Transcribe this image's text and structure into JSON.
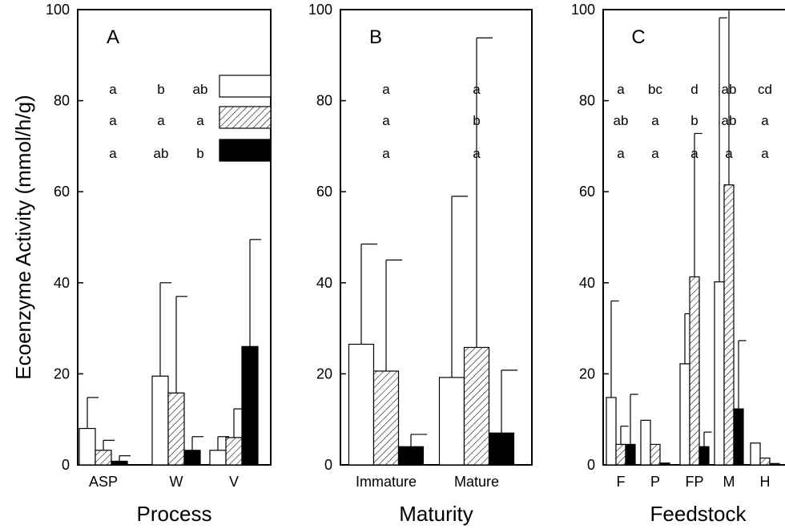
{
  "ylabel": "Ecoenzyme Activity (mmol/h/g)",
  "legend": [
    {
      "pattern": "open",
      "letters_A": [
        "a",
        "b",
        "ab"
      ]
    },
    {
      "pattern": "hatched",
      "letters_A": [
        "a",
        "a",
        "a"
      ]
    },
    {
      "pattern": "solid",
      "letters_A": [
        "a",
        "ab",
        "b"
      ]
    }
  ],
  "chart_data": [
    {
      "type": "bar",
      "panel_letter": "A",
      "xlabel": "Process",
      "ylim": [
        0,
        100
      ],
      "yticks": [
        0,
        20,
        40,
        60,
        80,
        100
      ],
      "categories": [
        "ASP",
        "W",
        "V"
      ],
      "series": [
        {
          "pattern": "open",
          "values": [
            8,
            19.5,
            3.2
          ],
          "errors": [
            6.8,
            20.5,
            3.0
          ]
        },
        {
          "pattern": "hatched",
          "values": [
            3.2,
            15.8,
            6.0
          ],
          "errors": [
            2.2,
            21.2,
            6.3
          ]
        },
        {
          "pattern": "solid",
          "values": [
            0.8,
            3.2,
            26
          ],
          "errors": [
            1.2,
            3.0,
            23.5
          ]
        }
      ]
    },
    {
      "type": "bar",
      "panel_letter": "B",
      "xlabel": "Maturity",
      "ylim": [
        0,
        100
      ],
      "yticks": [
        0,
        20,
        40,
        60,
        80,
        100
      ],
      "categories": [
        "Immature",
        "Mature"
      ],
      "series": [
        {
          "pattern": "open",
          "values": [
            26.5,
            19.2
          ],
          "errors": [
            22.0,
            39.8
          ]
        },
        {
          "pattern": "hatched",
          "values": [
            20.6,
            25.8
          ],
          "errors": [
            24.4,
            68.0
          ]
        },
        {
          "pattern": "solid",
          "values": [
            4.0,
            7.0
          ],
          "errors": [
            2.7,
            13.8
          ]
        }
      ],
      "letters": [
        {
          "category": "Immature",
          "rows": [
            "a",
            "a",
            "a"
          ]
        },
        {
          "category": "Mature",
          "rows": [
            "a",
            "b",
            "a"
          ]
        }
      ]
    },
    {
      "type": "bar",
      "panel_letter": "C",
      "xlabel": "Feedstock",
      "ylim": [
        0,
        100
      ],
      "yticks": [
        0,
        20,
        40,
        60,
        80,
        100
      ],
      "categories": [
        "F",
        "P",
        "FP",
        "M",
        "H"
      ],
      "series": [
        {
          "pattern": "open",
          "values": [
            14.8,
            9.8,
            22.2,
            40.2,
            4.8
          ],
          "errors": [
            21.2,
            0,
            11.0,
            58.0,
            0
          ]
        },
        {
          "pattern": "hatched",
          "values": [
            4.5,
            4.5,
            41.3,
            61.5,
            1.5
          ],
          "errors": [
            4.0,
            0,
            31.5,
            40.0,
            0
          ]
        },
        {
          "pattern": "solid",
          "values": [
            4.5,
            0.4,
            4.0,
            12.3,
            0.3
          ],
          "errors": [
            11.0,
            0,
            3.2,
            15.0,
            0
          ]
        }
      ],
      "letters": [
        {
          "category": "F",
          "rows": [
            "a",
            "ab",
            "a"
          ]
        },
        {
          "category": "P",
          "rows": [
            "bc",
            "a",
            "a"
          ]
        },
        {
          "category": "FP",
          "rows": [
            "d",
            "b",
            "a"
          ]
        },
        {
          "category": "M",
          "rows": [
            "ab",
            "ab",
            "a"
          ]
        },
        {
          "category": "H",
          "rows": [
            "cd",
            "a",
            "a"
          ]
        }
      ]
    }
  ]
}
